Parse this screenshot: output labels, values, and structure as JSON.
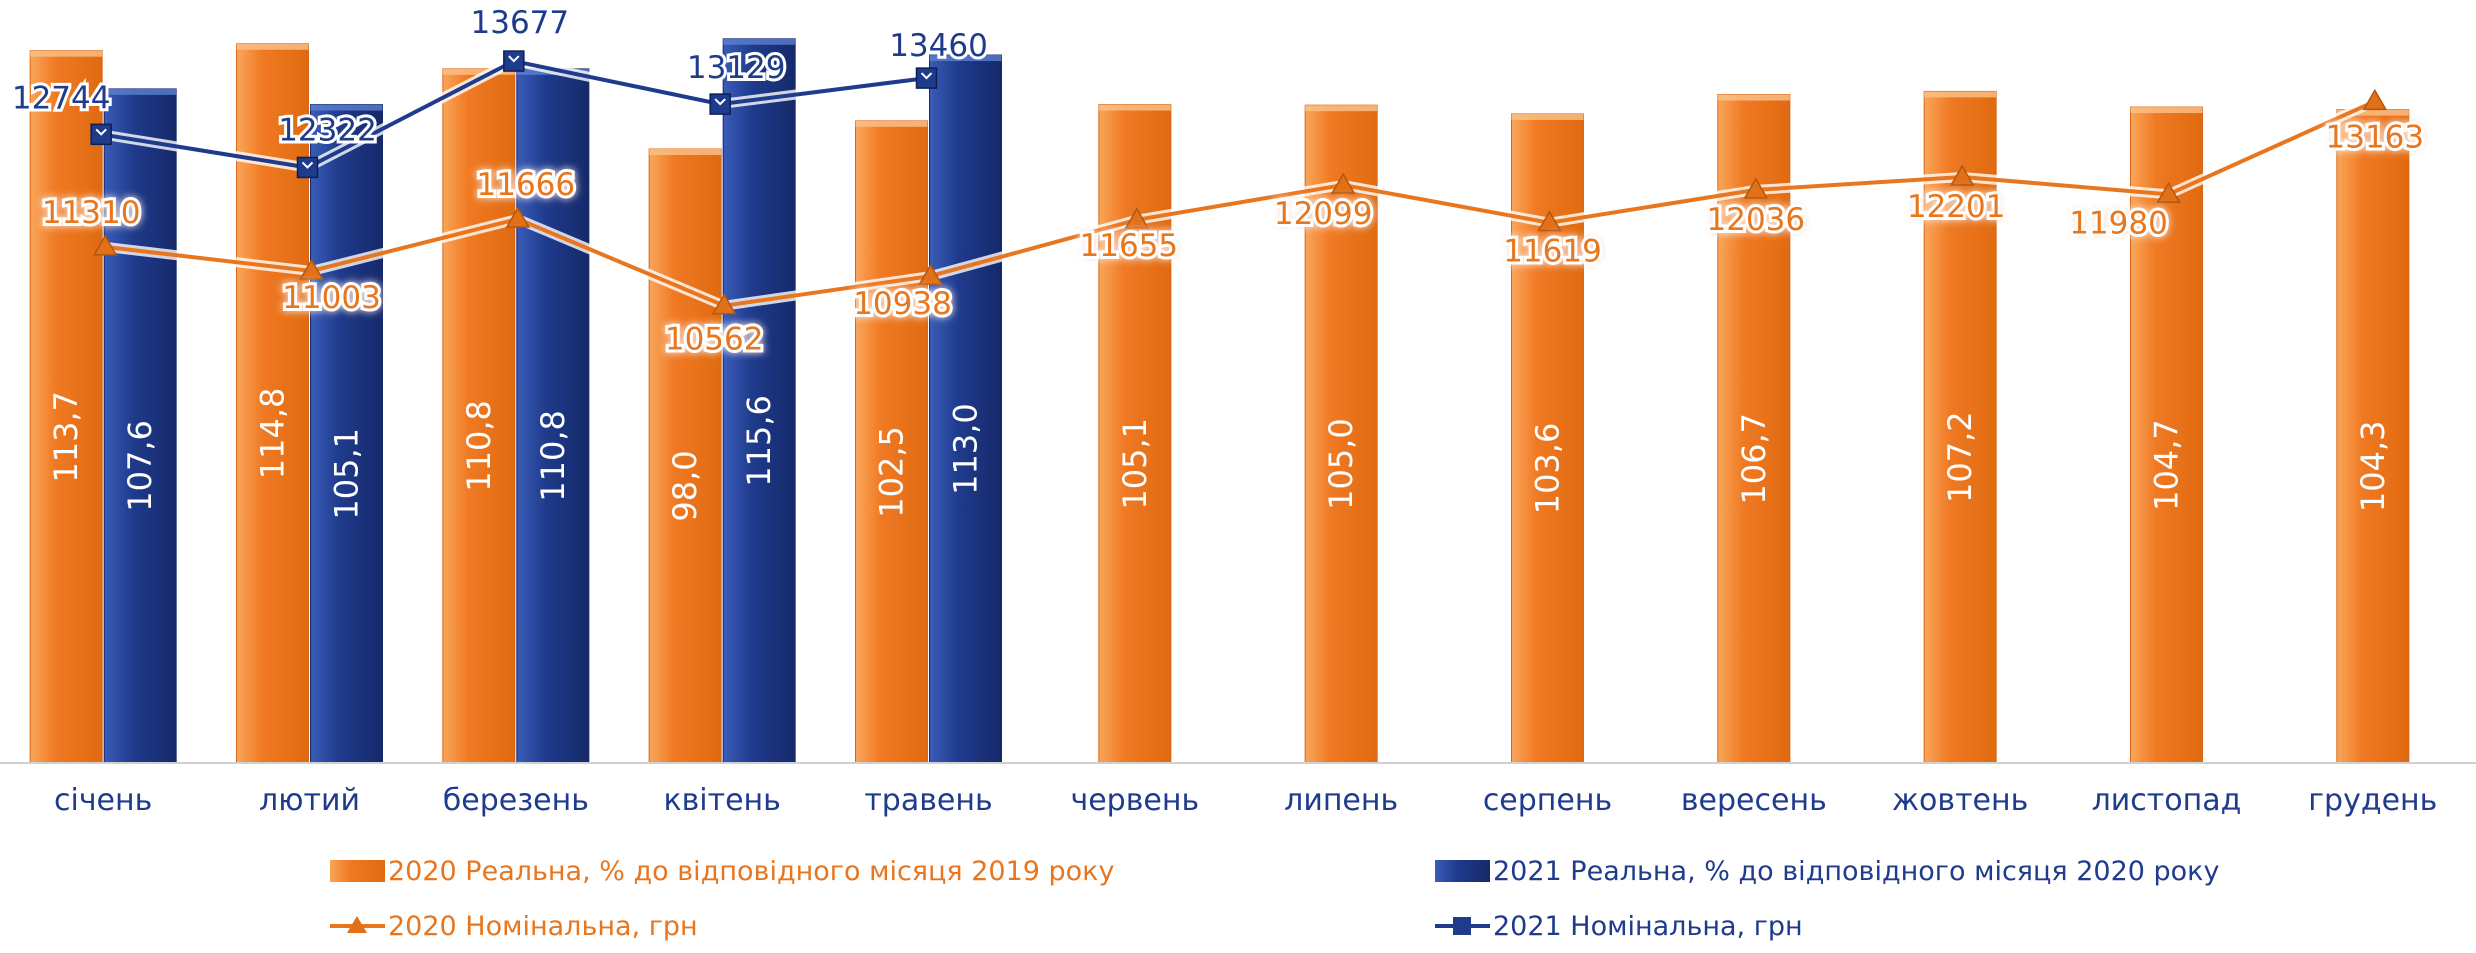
{
  "chart_data": {
    "type": "bar",
    "categories": [
      "січень",
      "лютий",
      "березень",
      "квітень",
      "травень",
      "червень",
      "липень",
      "серпень",
      "вересень",
      "жовтень",
      "листопад",
      "грудень"
    ],
    "series": [
      {
        "name": "2020 Реальна, % до відповідного місяця 2019 року",
        "kind": "bar",
        "color": "#f07a24",
        "values": [
          113.7,
          114.8,
          110.8,
          98.0,
          102.5,
          105.1,
          105.0,
          103.6,
          106.7,
          107.2,
          104.7,
          104.3
        ],
        "labels": [
          "113,7",
          "114,8",
          "110,8",
          "98,0",
          "102,5",
          "105,1",
          "105,0",
          "103,6",
          "106,7",
          "107,2",
          "104,7",
          "104,3"
        ]
      },
      {
        "name": "2021 Реальна, % до відповідного місяця 2020 року",
        "kind": "bar",
        "color": "#1f3b8c",
        "values": [
          107.6,
          105.1,
          110.8,
          115.6,
          113.0,
          null,
          null,
          null,
          null,
          null,
          null,
          null
        ],
        "labels": [
          "107,6",
          "105,1",
          "110,8",
          "115,6",
          "113,0",
          null,
          null,
          null,
          null,
          null,
          null,
          null
        ]
      },
      {
        "name": "2020 Номінальна, грн",
        "kind": "line",
        "marker": "triangle",
        "color": "#e8761f",
        "values": [
          11310,
          11003,
          11666,
          10562,
          10938,
          11655,
          12099,
          11619,
          12036,
          12201,
          11980,
          13163
        ],
        "labels": [
          "11310",
          "11003",
          "11666",
          "10562",
          "10938",
          "11655",
          "12099",
          "11619",
          "12036",
          "12201",
          "11980",
          "13163"
        ]
      },
      {
        "name": "2021 Номінальна, грн",
        "kind": "line",
        "marker": "square",
        "color": "#1f3b8c",
        "values": [
          12744,
          12322,
          13677,
          13129,
          13460,
          null,
          null,
          null,
          null,
          null,
          null,
          null
        ],
        "labels": [
          "12744",
          "12322",
          "13677",
          "13129",
          "13460",
          null,
          null,
          null,
          null,
          null,
          null,
          null
        ]
      }
    ],
    "bar_axis_range": [
      0,
      117
    ],
    "line_axis_range": [
      8800,
      14200
    ],
    "grid": false,
    "legend_position": "bottom"
  }
}
